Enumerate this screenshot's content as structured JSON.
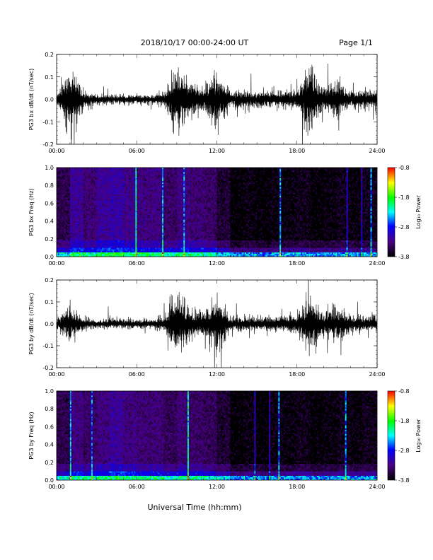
{
  "header": {
    "title": "2018/10/17   00:00-24:00 UT",
    "page": "Page 1/1"
  },
  "footer": {
    "xlabel": "Universal Time (hh:mm)"
  },
  "colorbar": {
    "label": "Log₁₀ Power",
    "ticks": [
      "-0.8",
      "-1.8",
      "-2.8",
      "-3.8"
    ],
    "range": [
      -3.8,
      -0.8
    ],
    "colormap": [
      "#000000",
      "#4b0082",
      "#0000ff",
      "#00ffff",
      "#00ff00",
      "#ffff00",
      "#ff0000"
    ]
  },
  "chart_data": [
    {
      "type": "line",
      "ylabel": "PG3 bx dB/dt (nT/sec)",
      "ylim": [
        -0.2,
        0.2
      ],
      "yticks": [
        "0.2",
        "0.1",
        "0.0",
        "-0.1",
        "-0.2"
      ],
      "xticks": [
        "00:00",
        "06:00",
        "12:00",
        "18:00",
        "24:00"
      ],
      "x_range_hours": [
        0,
        24
      ],
      "hourly_amplitude": [
        0.03,
        0.2,
        0.06,
        0.03,
        0.03,
        0.03,
        0.03,
        0.03,
        0.04,
        0.2,
        0.12,
        0.08,
        0.2,
        0.05,
        0.06,
        0.05,
        0.06,
        0.05,
        0.07,
        0.2,
        0.08,
        0.12,
        0.06,
        0.06
      ],
      "color": "#000000"
    },
    {
      "type": "heatmap",
      "ylabel": "PG3 bx Freq (Hz)",
      "ylim": [
        0.0,
        1.0
      ],
      "yticks": [
        "1.0",
        "0.8",
        "0.6",
        "0.4",
        "0.2",
        "0.0"
      ],
      "xticks": [
        "00:00",
        "06:00",
        "12:00",
        "18:00",
        "24:00"
      ],
      "x_range_hours": [
        0,
        24
      ],
      "hourly_background_log_power": [
        -3.5,
        -3.2,
        -3.35,
        -3.2,
        -3.15,
        -3.25,
        -3.3,
        -3.3,
        -3.4,
        -3.3,
        -3.35,
        -3.4,
        -3.6,
        -3.8,
        -3.75,
        -3.8,
        -3.75,
        -3.75,
        -3.7,
        -3.8,
        -3.75,
        -3.7,
        -3.75,
        -3.7
      ]
    },
    {
      "type": "line",
      "ylabel": "PG3 by dB/dt (nT/sec)",
      "ylim": [
        -0.2,
        0.2
      ],
      "yticks": [
        "0.2",
        "0.1",
        "0.0",
        "-0.1",
        "-0.2"
      ],
      "xticks": [
        "00:00",
        "06:00",
        "12:00",
        "18:00",
        "24:00"
      ],
      "x_range_hours": [
        0,
        24
      ],
      "hourly_amplitude": [
        0.03,
        0.13,
        0.04,
        0.03,
        0.03,
        0.03,
        0.03,
        0.03,
        0.04,
        0.2,
        0.11,
        0.08,
        0.2,
        0.05,
        0.05,
        0.05,
        0.05,
        0.05,
        0.06,
        0.2,
        0.08,
        0.12,
        0.06,
        0.05
      ],
      "color": "#000000"
    },
    {
      "type": "heatmap",
      "ylabel": "PG3 by Freq (Hz)",
      "ylim": [
        0.0,
        1.0
      ],
      "yticks": [
        "1.0",
        "0.8",
        "0.6",
        "0.4",
        "0.2",
        "0.0"
      ],
      "xticks": [
        "00:00",
        "06:00",
        "12:00",
        "18:00",
        "24:00"
      ],
      "x_range_hours": [
        0,
        24
      ],
      "hourly_background_log_power": [
        -3.5,
        -3.3,
        -3.4,
        -3.3,
        -3.2,
        -3.3,
        -3.35,
        -3.35,
        -3.45,
        -3.35,
        -3.4,
        -3.45,
        -3.6,
        -3.8,
        -3.75,
        -3.8,
        -3.75,
        -3.75,
        -3.7,
        -3.8,
        -3.75,
        -3.7,
        -3.75,
        -3.7
      ]
    }
  ]
}
